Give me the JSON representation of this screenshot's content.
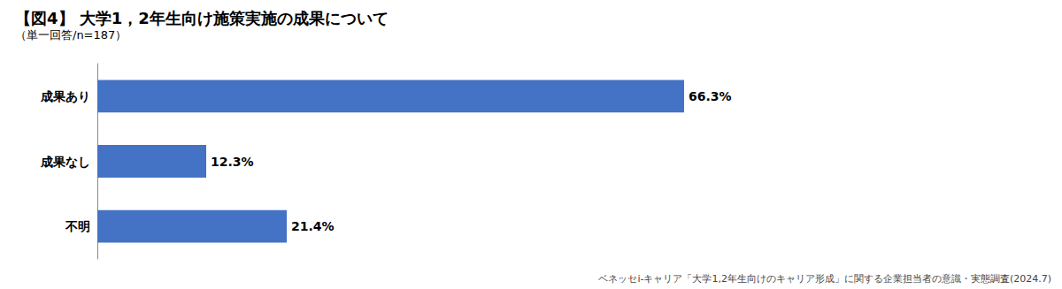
{
  "chart_data": {
    "type": "bar",
    "orientation": "horizontal",
    "title": "【図4】 大学1，2年生向け施策実施の成果について",
    "subtitle": "（単一回答/n=187）",
    "categories": [
      "成果あり",
      "成果なし",
      "不明"
    ],
    "values": [
      66.3,
      12.3,
      21.4
    ],
    "value_labels": [
      "66.3%",
      "12.3%",
      "21.4%"
    ],
    "data_labels": true,
    "color": "#4472C4",
    "xlim": [
      0,
      100
    ],
    "tick_labels": "y",
    "grid": false,
    "footnote": "ベネッセi-キャリア「大学1,2年生向けのキャリア形成」に関する企業担当者の意識・実態調査(2024.7)"
  }
}
